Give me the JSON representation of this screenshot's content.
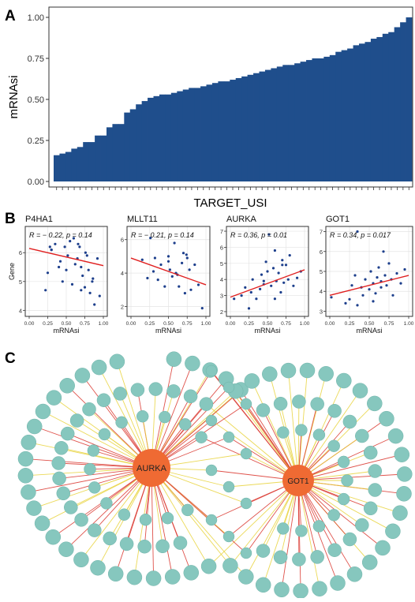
{
  "panel_labels": [
    "A",
    "B",
    "C"
  ],
  "chart_data": [
    {
      "type": "bar",
      "panel": "A",
      "xlabel": "TARGET_USI",
      "ylabel": "mRNAsi",
      "ylim": [
        0,
        1
      ],
      "yticks": [
        "0.00",
        "0.25",
        "0.50",
        "0.75",
        "1.00"
      ],
      "bar_color": "#1f4e8c",
      "values": [
        0.16,
        0.17,
        0.18,
        0.2,
        0.21,
        0.24,
        0.24,
        0.28,
        0.28,
        0.33,
        0.35,
        0.35,
        0.42,
        0.44,
        0.47,
        0.49,
        0.51,
        0.52,
        0.53,
        0.53,
        0.54,
        0.55,
        0.56,
        0.57,
        0.57,
        0.58,
        0.59,
        0.6,
        0.61,
        0.61,
        0.62,
        0.63,
        0.64,
        0.65,
        0.66,
        0.67,
        0.68,
        0.69,
        0.7,
        0.71,
        0.71,
        0.72,
        0.73,
        0.74,
        0.75,
        0.75,
        0.76,
        0.77,
        0.79,
        0.8,
        0.81,
        0.83,
        0.84,
        0.85,
        0.87,
        0.88,
        0.9,
        0.91,
        0.94,
        0.97,
        1.0
      ]
    },
    {
      "type": "scatter",
      "panel": "B",
      "title": "P4HA1",
      "stat": "R = − 0.22, p = 0.14",
      "xlabel": "mRNAsi",
      "ylabel": "Gene",
      "xlim": [
        0,
        1
      ],
      "ylim": [
        3.9,
        6.8
      ],
      "xticks": [
        "0.00",
        "0.25",
        "0.50",
        "0.75",
        "1.00"
      ],
      "yticks": [
        4,
        5,
        6
      ],
      "fit": [
        6.15,
        5.55
      ],
      "x": [
        0.22,
        0.25,
        0.28,
        0.3,
        0.35,
        0.4,
        0.45,
        0.48,
        0.5,
        0.55,
        0.58,
        0.62,
        0.65,
        0.68,
        0.7,
        0.72,
        0.75,
        0.78,
        0.8,
        0.82,
        0.85,
        0.88,
        0.92,
        0.95,
        0.3,
        0.52,
        0.6,
        0.7,
        0.76,
        0.86,
        0.42,
        0.66
      ],
      "y": [
        4.7,
        5.3,
        6.2,
        6.1,
        6.3,
        5.5,
        5.0,
        6.2,
        5.4,
        6.4,
        4.9,
        5.6,
        5.8,
        6.2,
        4.7,
        5.2,
        4.8,
        5.9,
        5.4,
        4.6,
        5.0,
        4.2,
        5.8,
        4.5,
        6.1,
        5.9,
        6.5,
        5.5,
        6.0,
        5.1,
        5.7,
        6.3
      ]
    },
    {
      "type": "scatter",
      "panel": "B",
      "title": "MLLT11",
      "stat": "R = − 0.21, p = 0.14",
      "xlabel": "mRNAsi",
      "ylabel": "",
      "xlim": [
        0,
        1
      ],
      "ylim": [
        1.6,
        6.6
      ],
      "xticks": [
        "0.00",
        "0.25",
        "0.50",
        "0.75",
        "1.00"
      ],
      "yticks": [
        2,
        4,
        6
      ],
      "fit": [
        4.9,
        3.3
      ],
      "x": [
        0.15,
        0.22,
        0.26,
        0.32,
        0.36,
        0.4,
        0.45,
        0.5,
        0.52,
        0.55,
        0.58,
        0.6,
        0.64,
        0.68,
        0.7,
        0.72,
        0.75,
        0.78,
        0.8,
        0.85,
        0.9,
        0.95,
        0.3,
        0.62,
        0.74,
        0.5
      ],
      "y": [
        4.8,
        3.7,
        6.1,
        4.9,
        3.6,
        4.5,
        3.2,
        5.0,
        4.2,
        3.8,
        5.8,
        4.0,
        3.2,
        4.6,
        5.2,
        2.8,
        4.9,
        4.2,
        3.0,
        4.5,
        3.3,
        1.9,
        4.1,
        3.9,
        5.1,
        4.7
      ]
    },
    {
      "type": "scatter",
      "panel": "B",
      "title": "AURKA",
      "stat": "R = 0.36, p = 0.01",
      "xlabel": "mRNAsi",
      "ylabel": "",
      "xlim": [
        0,
        1
      ],
      "ylim": [
        1.9,
        7.1
      ],
      "xticks": [
        "0.00",
        "0.25",
        "0.50",
        "0.75",
        "1.00"
      ],
      "yticks": [
        2,
        3,
        4,
        5,
        6,
        7
      ],
      "fit": [
        2.9,
        4.6
      ],
      "x": [
        0.05,
        0.15,
        0.2,
        0.25,
        0.28,
        0.3,
        0.35,
        0.4,
        0.42,
        0.45,
        0.48,
        0.5,
        0.52,
        0.55,
        0.58,
        0.6,
        0.62,
        0.65,
        0.68,
        0.7,
        0.72,
        0.75,
        0.78,
        0.8,
        0.85,
        0.9,
        0.95,
        0.45,
        0.6,
        0.7
      ],
      "y": [
        2.8,
        3.0,
        3.5,
        2.2,
        3.2,
        4.0,
        2.8,
        3.4,
        4.3,
        3.9,
        5.1,
        4.5,
        6.8,
        3.6,
        4.7,
        5.8,
        3.9,
        4.4,
        3.2,
        5.2,
        3.8,
        4.9,
        4.0,
        5.5,
        3.6,
        4.1,
        4.5,
        3.7,
        2.8,
        4.9
      ]
    },
    {
      "type": "scatter",
      "panel": "B",
      "title": "GOT1",
      "stat": "R = 0.34, p = 0.017",
      "xlabel": "mRNAsi",
      "ylabel": "",
      "xlim": [
        0,
        1
      ],
      "ylim": [
        2.9,
        7.1
      ],
      "xticks": [
        "0.00",
        "0.25",
        "0.50",
        "0.75",
        "1.00"
      ],
      "yticks": [
        3,
        4,
        5,
        6,
        7
      ],
      "fit": [
        3.8,
        4.8
      ],
      "x": [
        0.02,
        0.2,
        0.25,
        0.28,
        0.32,
        0.35,
        0.4,
        0.42,
        0.45,
        0.5,
        0.52,
        0.55,
        0.58,
        0.6,
        0.62,
        0.65,
        0.68,
        0.7,
        0.72,
        0.75,
        0.78,
        0.8,
        0.85,
        0.9,
        0.95,
        0.55,
        0.65,
        0.35
      ],
      "y": [
        3.7,
        3.4,
        3.6,
        4.3,
        4.8,
        7.0,
        4.2,
        3.8,
        4.6,
        4.1,
        5.0,
        4.4,
        3.9,
        4.7,
        5.2,
        4.5,
        6.0,
        4.8,
        4.3,
        5.4,
        4.6,
        3.8,
        4.9,
        4.4,
        5.1,
        3.5,
        4.2,
        3.3
      ]
    }
  ],
  "network": {
    "hub_labels": [
      "AURKA",
      "GOT1"
    ],
    "hub_color": "#ef6a33",
    "node_color": "#86c7be",
    "edge_red": "#d9342b",
    "edge_yellow": "#e8d23a"
  }
}
